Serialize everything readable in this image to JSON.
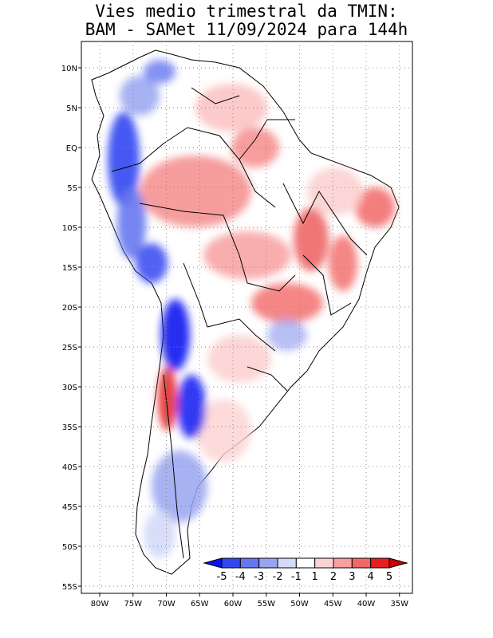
{
  "title": {
    "line1": "Vies medio trimestral da TMIN:",
    "line2": "BAM - SAMet 11/09/2024  para 144h"
  },
  "map": {
    "lat_labels": [
      "10N",
      "5N",
      "EQ",
      "5S",
      "10S",
      "15S",
      "20S",
      "25S",
      "30S",
      "35S",
      "40S",
      "45S",
      "50S",
      "55S"
    ],
    "lon_labels": [
      "80W",
      "75W",
      "70W",
      "65W",
      "60W",
      "55W",
      "50W",
      "45W",
      "40W",
      "35W"
    ],
    "lat_range": [
      -56,
      13
    ],
    "lon_range": [
      -83,
      -34
    ],
    "grid": "dotted"
  },
  "colorbar": {
    "labels": [
      "-5",
      "-4",
      "-3",
      "-2",
      "-1",
      "1",
      "2",
      "3",
      "4",
      "5"
    ],
    "colors": [
      "#0a14f0",
      "#3246f0",
      "#6678f0",
      "#98a4f0",
      "#d4daf8",
      "#ffffff",
      "#fcd2d2",
      "#f8a0a0",
      "#f26868",
      "#e81e1e",
      "#c80000"
    ]
  }
}
